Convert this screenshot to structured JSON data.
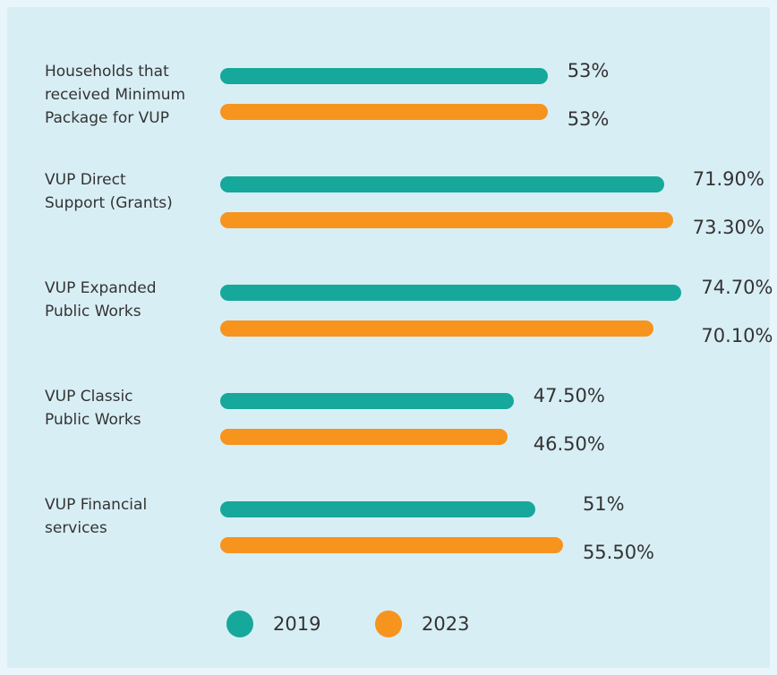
{
  "chart_data": {
    "type": "bar",
    "orientation": "horizontal",
    "categories": [
      "Households that\nreceived Minimum\nPackage for VUP",
      "VUP Direct\nSupport (Grants)",
      "VUP Expanded\nPublic Works",
      "VUP Classic\nPublic Works",
      "VUP Financial\nservices"
    ],
    "series": [
      {
        "name": "2019",
        "color": "#15a89b",
        "values": [
          53,
          71.9,
          74.7,
          47.5,
          51
        ],
        "value_labels": [
          "53%",
          "71.90%",
          "74.70%",
          "47.50%",
          "51%"
        ]
      },
      {
        "name": "2023",
        "color": "#f7941e",
        "values": [
          53,
          73.3,
          70.1,
          46.5,
          55.5
        ],
        "value_labels": [
          "53%",
          "73.30%",
          "70.10%",
          "46.50%",
          "55.50%"
        ]
      }
    ]
  }
}
